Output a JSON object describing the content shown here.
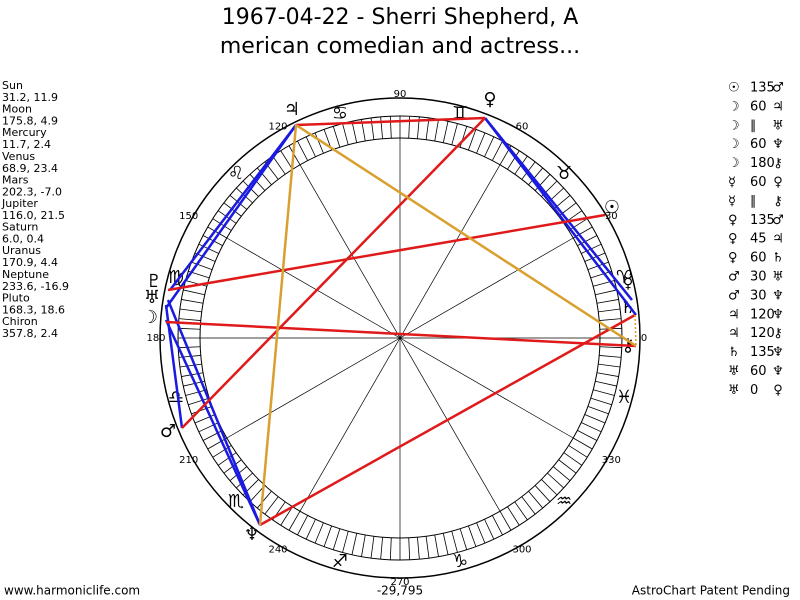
{
  "title": [
    "1967-04-22 - Sherri Shepherd, A",
    "merican comedian and actress..."
  ],
  "planets": [
    {
      "name": "Sun",
      "position": "31.2, 11.9",
      "glyph": "☉"
    },
    {
      "name": "Moon",
      "position": "175.8, 4.9",
      "glyph": "☽"
    },
    {
      "name": "Mercury",
      "position": "11.7, 2.4",
      "glyph": "☿"
    },
    {
      "name": "Venus",
      "position": "68.9, 23.4",
      "glyph": "♀"
    },
    {
      "name": "Mars",
      "position": "202.3, -7.0",
      "glyph": "♂"
    },
    {
      "name": "Jupiter",
      "position": "116.0, 21.5",
      "glyph": "♃"
    },
    {
      "name": "Saturn",
      "position": "6.0, 0.4",
      "glyph": "♄"
    },
    {
      "name": "Uranus",
      "position": "170.9, 4.4",
      "glyph": "♅"
    },
    {
      "name": "Neptune",
      "position": "233.6, -16.9",
      "glyph": "♆"
    },
    {
      "name": "Pluto",
      "position": "168.3, 18.6",
      "glyph": "♇"
    },
    {
      "name": "Chiron",
      "position": "357.8, 2.4",
      "glyph": "⚷"
    }
  ],
  "aspects": [
    {
      "from": "☉",
      "aspect": "135",
      "to": "♂"
    },
    {
      "from": "☽",
      "aspect": "60",
      "to": "♃"
    },
    {
      "from": "☽",
      "aspect": "∥",
      "to": "♅"
    },
    {
      "from": "☽",
      "aspect": "60",
      "to": "♆"
    },
    {
      "from": "☽",
      "aspect": "180",
      "to": "⚷"
    },
    {
      "from": "☿",
      "aspect": "60",
      "to": "♀"
    },
    {
      "from": "☿",
      "aspect": "∥",
      "to": "⚷"
    },
    {
      "from": "♀",
      "aspect": "135",
      "to": "♂"
    },
    {
      "from": "♀",
      "aspect": "45",
      "to": "♃"
    },
    {
      "from": "♀",
      "aspect": "60",
      "to": "♄"
    },
    {
      "from": "♂",
      "aspect": "30",
      "to": "♅"
    },
    {
      "from": "♂",
      "aspect": "30",
      "to": "♆"
    },
    {
      "from": "♃",
      "aspect": "120",
      "to": "♆"
    },
    {
      "from": "♃",
      "aspect": "120",
      "to": "⚷"
    },
    {
      "from": "♄",
      "aspect": "135",
      "to": "♆"
    },
    {
      "from": "♅",
      "aspect": "60",
      "to": "♆"
    },
    {
      "from": "♅",
      "aspect": "0",
      "to": "♀"
    }
  ],
  "signs": [
    "♈",
    "♉",
    "♊",
    "♋",
    "♌",
    "♍",
    "♎",
    "♏",
    "♐",
    "♑",
    "♒",
    "♓"
  ],
  "degree_labels": [
    0,
    30,
    60,
    90,
    120,
    150,
    180,
    210,
    240,
    270,
    300,
    330
  ],
  "footer": {
    "left": "www.harmoniclife.com",
    "center": "-29,795",
    "right": "AstroChart Patent Pending"
  }
}
